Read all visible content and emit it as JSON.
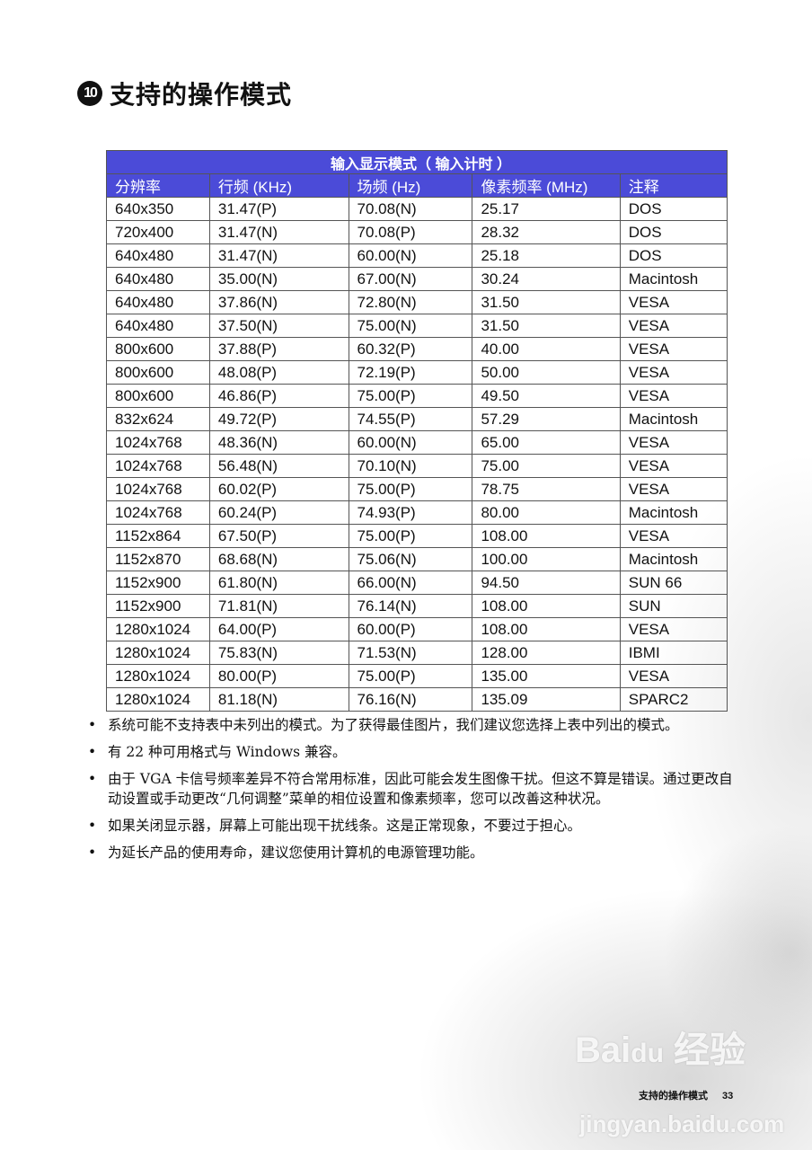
{
  "title": {
    "number": "10",
    "text": "支持的操作模式"
  },
  "table": {
    "caption": "输入显示模式（ 输入计时 ）",
    "headers": [
      "分辨率",
      "行频 (KHz)",
      "场频 (Hz)",
      "像素频率 (MHz)",
      "注释"
    ],
    "rows": [
      [
        "640x350",
        "31.47(P)",
        "70.08(N)",
        "25.17",
        "DOS"
      ],
      [
        "720x400",
        "31.47(N)",
        "70.08(P)",
        "28.32",
        "DOS"
      ],
      [
        "640x480",
        "31.47(N)",
        "60.00(N)",
        "25.18",
        "DOS"
      ],
      [
        "640x480",
        "35.00(N)",
        "67.00(N)",
        "30.24",
        "Macintosh"
      ],
      [
        "640x480",
        "37.86(N)",
        "72.80(N)",
        "31.50",
        "VESA"
      ],
      [
        "640x480",
        "37.50(N)",
        "75.00(N)",
        "31.50",
        "VESA"
      ],
      [
        "800x600",
        "37.88(P)",
        "60.32(P)",
        "40.00",
        "VESA"
      ],
      [
        "800x600",
        "48.08(P)",
        "72.19(P)",
        "50.00",
        "VESA"
      ],
      [
        "800x600",
        "46.86(P)",
        "75.00(P)",
        "49.50",
        "VESA"
      ],
      [
        "832x624",
        "49.72(P)",
        "74.55(P)",
        "57.29",
        "Macintosh"
      ],
      [
        "1024x768",
        "48.36(N)",
        "60.00(N)",
        "65.00",
        "VESA"
      ],
      [
        "1024x768",
        "56.48(N)",
        "70.10(N)",
        "75.00",
        "VESA"
      ],
      [
        "1024x768",
        "60.02(P)",
        "75.00(P)",
        "78.75",
        "VESA"
      ],
      [
        "1024x768",
        "60.24(P)",
        "74.93(P)",
        "80.00",
        "Macintosh"
      ],
      [
        "1152x864",
        "67.50(P)",
        "75.00(P)",
        "108.00",
        "VESA"
      ],
      [
        "1152x870",
        "68.68(N)",
        "75.06(N)",
        "100.00",
        "Macintosh"
      ],
      [
        "1152x900",
        "61.80(N)",
        "66.00(N)",
        "94.50",
        "SUN 66"
      ],
      [
        "1152x900",
        "71.81(N)",
        "76.14(N)",
        "108.00",
        "SUN"
      ],
      [
        "1280x1024",
        "64.00(P)",
        "60.00(P)",
        "108.00",
        "VESA"
      ],
      [
        "1280x1024",
        "75.83(N)",
        "71.53(N)",
        "128.00",
        "IBMI"
      ],
      [
        "1280x1024",
        "80.00(P)",
        "75.00(P)",
        "135.00",
        "VESA"
      ],
      [
        "1280x1024",
        "81.18(N)",
        "76.16(N)",
        "135.09",
        "SPARC2"
      ]
    ],
    "header_color": "#4b4bd8"
  },
  "notes": [
    "系统可能不支持表中未列出的模式。为了获得最佳图片，我们建议您选择上表中列出的模式。",
    "有 22 种可用格式与 Windows 兼容。",
    "由于 VGA 卡信号频率差异不符合常用标准，因此可能会发生图像干扰。但这不算是错误。通过更改自动设置或手动更改“几何调整”菜单的相位设置和像素频率，您可以改善这种状况。",
    "如果关闭显示器，屏幕上可能出现干扰线条。这是正常现象，不要过于担心。",
    "为延长产品的使用寿命，建议您使用计算机的电源管理功能。"
  ],
  "watermark": {
    "logo": "Baidu经验",
    "url": "jingyan.baidu.com"
  },
  "footer": {
    "section": "支持的操作模式",
    "page": "33"
  }
}
